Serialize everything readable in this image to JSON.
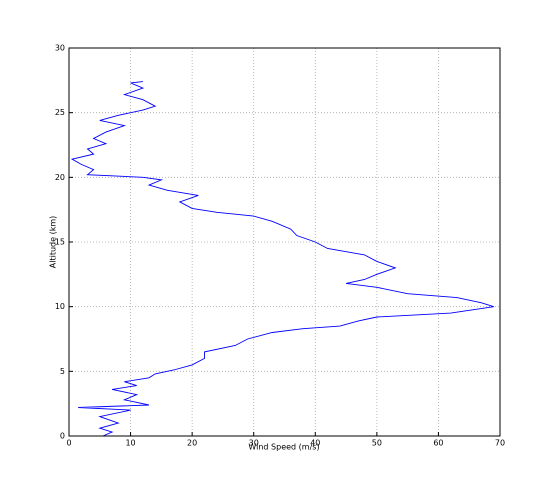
{
  "chart_data": {
    "type": "line",
    "xlabel": "Wind Speed (m/s)",
    "ylabel": "Altitude (km)",
    "series": [
      {
        "color": "#0000ff",
        "x": [
          5.5,
          7,
          5,
          8,
          5,
          10,
          1.5,
          13,
          9,
          11,
          7,
          11,
          9,
          13,
          14,
          17,
          20,
          22,
          22,
          27,
          29,
          33,
          38,
          44,
          47,
          50,
          62,
          69,
          67,
          63,
          55,
          50,
          45,
          48,
          50,
          53,
          50,
          48,
          42,
          40,
          37,
          36,
          33,
          30,
          24,
          20,
          18,
          21,
          16,
          13,
          15,
          12,
          3,
          4,
          2,
          0.5,
          4,
          3,
          6,
          4,
          6,
          9,
          5,
          8,
          12,
          14,
          12,
          9,
          12,
          10,
          12
        ],
        "values": [
          0,
          0.3,
          0.6,
          1,
          1.5,
          2,
          2.2,
          2.4,
          2.8,
          3.2,
          3.6,
          3.9,
          4.2,
          4.5,
          4.8,
          5.1,
          5.5,
          6,
          6.5,
          7,
          7.5,
          8,
          8.3,
          8.5,
          8.9,
          9.2,
          9.5,
          10,
          10.3,
          10.7,
          11,
          11.5,
          11.8,
          12.1,
          12.5,
          13,
          13.5,
          14,
          14.5,
          15,
          15.5,
          16,
          16.6,
          17,
          17.3,
          17.6,
          18.1,
          18.6,
          19,
          19.4,
          19.8,
          20,
          20.2,
          20.6,
          21,
          21.4,
          21.8,
          22.2,
          22.6,
          23,
          23.5,
          24,
          24.4,
          24.8,
          25.2,
          25.5,
          26,
          26.4,
          26.9,
          27.3,
          27.4
        ]
      }
    ],
    "xlim": [
      0,
      70
    ],
    "xticks": [
      0,
      10,
      20,
      30,
      40,
      50,
      60,
      70
    ],
    "ylim": [
      0,
      30
    ],
    "yticks": [
      0,
      5,
      10,
      15,
      20,
      25,
      30
    ],
    "grid": true
  }
}
